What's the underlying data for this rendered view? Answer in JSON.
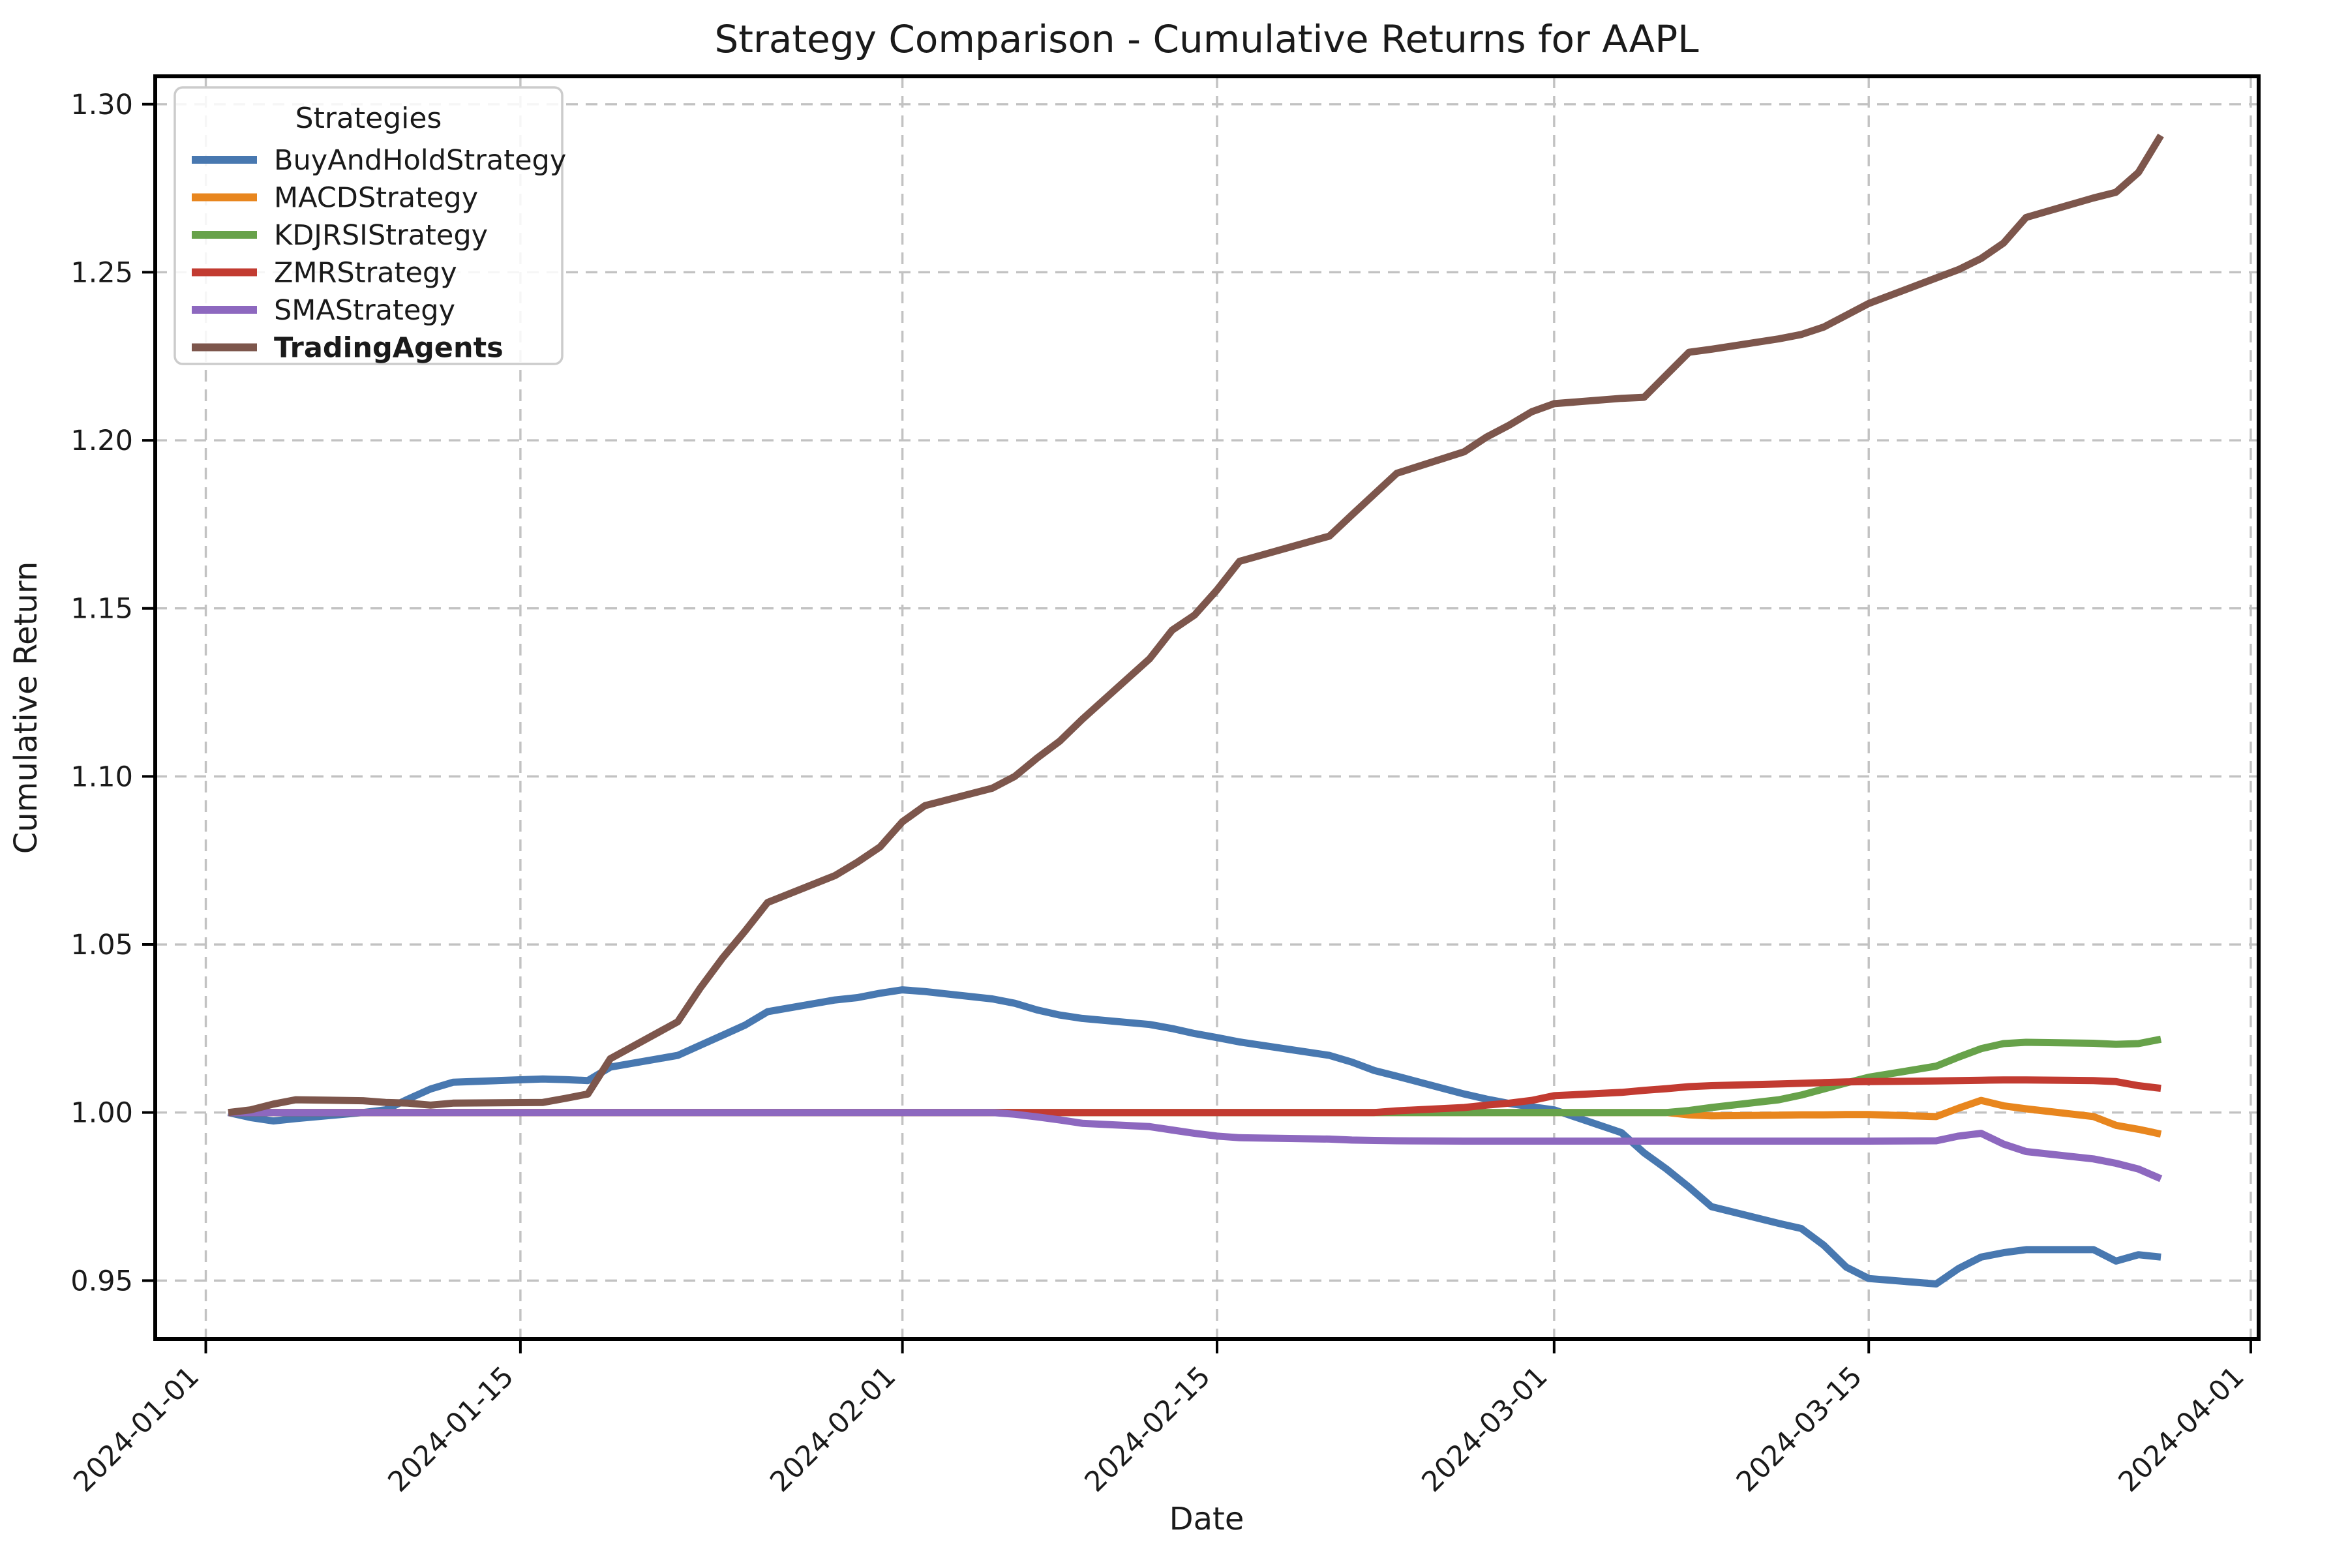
{
  "chart_data": {
    "type": "line",
    "title": "Strategy Comparison - Cumulative Returns for AAPL",
    "xlabel": "Date",
    "ylabel": "Cumulative Return",
    "legend_title": "Strategies",
    "legend_position": "upper left",
    "grid": "dashed",
    "axes": {
      "xlim_days_from_2024_01_01": [
        -2.25,
        91.35
      ],
      "ylim": [
        0.9326,
        1.3083
      ],
      "x_ticks": [
        {
          "day": 0,
          "label": "2024-01-01"
        },
        {
          "day": 14,
          "label": "2024-01-15"
        },
        {
          "day": 31,
          "label": "2024-02-01"
        },
        {
          "day": 45,
          "label": "2024-02-15"
        },
        {
          "day": 60,
          "label": "2024-03-01"
        },
        {
          "day": 74,
          "label": "2024-03-15"
        },
        {
          "day": 91,
          "label": "2024-04-01"
        }
      ],
      "y_ticks": [
        {
          "value": 0.95,
          "label": "0.95"
        },
        {
          "value": 1.0,
          "label": "1.00"
        },
        {
          "value": 1.05,
          "label": "1.05"
        },
        {
          "value": 1.1,
          "label": "1.10"
        },
        {
          "value": 1.15,
          "label": "1.15"
        },
        {
          "value": 1.2,
          "label": "1.20"
        },
        {
          "value": 1.25,
          "label": "1.25"
        },
        {
          "value": 1.3,
          "label": "1.30"
        }
      ]
    },
    "x_dates": [
      "2024-01-02",
      "2024-01-03",
      "2024-01-04",
      "2024-01-05",
      "2024-01-08",
      "2024-01-09",
      "2024-01-10",
      "2024-01-11",
      "2024-01-12",
      "2024-01-16",
      "2024-01-17",
      "2024-01-18",
      "2024-01-19",
      "2024-01-22",
      "2024-01-23",
      "2024-01-24",
      "2024-01-25",
      "2024-01-26",
      "2024-01-29",
      "2024-01-30",
      "2024-01-31",
      "2024-02-01",
      "2024-02-02",
      "2024-02-05",
      "2024-02-06",
      "2024-02-07",
      "2024-02-08",
      "2024-02-09",
      "2024-02-12",
      "2024-02-13",
      "2024-02-14",
      "2024-02-15",
      "2024-02-16",
      "2024-02-20",
      "2024-02-21",
      "2024-02-22",
      "2024-02-23",
      "2024-02-26",
      "2024-02-27",
      "2024-02-28",
      "2024-02-29",
      "2024-03-01",
      "2024-03-04",
      "2024-03-05",
      "2024-03-06",
      "2024-03-07",
      "2024-03-08",
      "2024-03-11",
      "2024-03-12",
      "2024-03-13",
      "2024-03-14",
      "2024-03-15",
      "2024-03-18",
      "2024-03-19",
      "2024-03-20",
      "2024-03-21",
      "2024-03-22",
      "2024-03-25",
      "2024-03-26",
      "2024-03-27",
      "2024-03-28"
    ],
    "x_days": [
      1,
      2,
      3,
      4,
      7,
      8,
      9,
      10,
      11,
      15,
      16,
      17,
      18,
      21,
      22,
      23,
      24,
      25,
      28,
      29,
      30,
      31,
      32,
      35,
      36,
      37,
      38,
      39,
      42,
      43,
      44,
      45,
      46,
      50,
      51,
      52,
      53,
      56,
      57,
      58,
      59,
      60,
      63,
      64,
      65,
      66,
      67,
      70,
      71,
      72,
      73,
      74,
      77,
      78,
      79,
      80,
      81,
      84,
      85,
      86,
      87
    ],
    "series": [
      {
        "name": "BuyAndHoldStrategy",
        "color": "#4878b0",
        "bold": false,
        "values": [
          1.0,
          0.9985,
          0.9975,
          0.9982,
          1.0,
          1.0008,
          1.004,
          1.007,
          1.009,
          1.01,
          1.0098,
          1.0095,
          1.0135,
          1.017,
          1.02,
          1.023,
          1.026,
          1.03,
          1.0335,
          1.0342,
          1.0355,
          1.0365,
          1.036,
          1.0338,
          1.0325,
          1.0305,
          1.029,
          1.028,
          1.0262,
          1.025,
          1.0235,
          1.0223,
          1.021,
          1.017,
          1.015,
          1.0125,
          1.0108,
          1.0055,
          1.004,
          1.0027,
          1.0017,
          1.0008,
          0.994,
          0.988,
          0.9832,
          0.9778,
          0.972,
          0.967,
          0.9655,
          0.9605,
          0.954,
          0.9506,
          0.949,
          0.9536,
          0.957,
          0.9583,
          0.9592,
          0.9592,
          0.9558,
          0.9577,
          0.957
        ]
      },
      {
        "name": "MACDStrategy",
        "color": "#e8861e",
        "bold": false,
        "values": [
          1.0,
          1.0,
          1.0,
          1.0,
          1.0,
          1.0,
          1.0,
          1.0,
          1.0,
          1.0,
          1.0,
          1.0,
          1.0,
          1.0,
          1.0,
          1.0,
          1.0,
          1.0,
          1.0,
          1.0,
          1.0,
          1.0,
          1.0,
          1.0,
          1.0,
          1.0,
          1.0,
          1.0,
          1.0,
          1.0,
          1.0,
          1.0,
          1.0,
          1.0,
          1.0,
          1.0,
          1.0,
          1.0,
          1.0,
          1.0,
          1.0,
          1.0,
          1.0,
          1.0,
          1.0,
          0.9993,
          0.999,
          0.9992,
          0.9993,
          0.9993,
          0.9994,
          0.9994,
          0.9988,
          1.0013,
          1.0036,
          1.002,
          1.0011,
          0.9988,
          0.9962,
          0.995,
          0.9936
        ]
      },
      {
        "name": "KDJRSIStrategy",
        "color": "#67a24a",
        "bold": false,
        "values": [
          1.0,
          1.0,
          1.0,
          1.0,
          1.0,
          1.0,
          1.0,
          1.0,
          1.0,
          1.0,
          1.0,
          1.0,
          1.0,
          1.0,
          1.0,
          1.0,
          1.0,
          1.0,
          1.0,
          1.0,
          1.0,
          1.0,
          1.0,
          1.0,
          1.0,
          1.0,
          1.0,
          1.0,
          1.0,
          1.0,
          1.0,
          1.0,
          1.0,
          1.0,
          1.0,
          1.0,
          1.0,
          1.0,
          1.0,
          1.0,
          1.0,
          1.0,
          1.0,
          1.0,
          1.0,
          1.0006,
          1.0015,
          1.0038,
          1.0052,
          1.007,
          1.0088,
          1.0105,
          1.0138,
          1.0165,
          1.019,
          1.0205,
          1.0209,
          1.0206,
          1.0203,
          1.0205,
          1.0218
        ]
      },
      {
        "name": "ZMRStrategy",
        "color": "#c23b31",
        "bold": false,
        "values": [
          1.0,
          1.0,
          1.0,
          1.0,
          1.0,
          1.0,
          1.0,
          1.0,
          1.0,
          1.0,
          1.0,
          1.0,
          1.0,
          1.0,
          1.0,
          1.0,
          1.0,
          1.0,
          1.0,
          1.0,
          1.0,
          1.0,
          1.0,
          1.0,
          1.0,
          1.0,
          1.0,
          1.0,
          1.0,
          1.0,
          1.0,
          1.0,
          1.0,
          1.0,
          1.0,
          1.0,
          1.0005,
          1.0015,
          1.0022,
          1.0028,
          1.0036,
          1.005,
          1.006,
          1.0066,
          1.0071,
          1.0077,
          1.008,
          1.0085,
          1.0087,
          1.0089,
          1.0091,
          1.0092,
          1.0094,
          1.0095,
          1.0096,
          1.0097,
          1.0097,
          1.0095,
          1.0092,
          1.008,
          1.0072
        ]
      },
      {
        "name": "SMAStrategy",
        "color": "#8d68bf",
        "bold": false,
        "values": [
          1.0,
          1.0,
          1.0,
          1.0,
          1.0,
          1.0,
          1.0,
          1.0,
          1.0,
          1.0,
          1.0,
          1.0,
          1.0,
          1.0,
          1.0,
          1.0,
          1.0,
          1.0,
          1.0,
          1.0,
          1.0,
          1.0,
          1.0,
          1.0,
          0.9995,
          0.9987,
          0.9978,
          0.9968,
          0.9958,
          0.9948,
          0.9938,
          0.993,
          0.9925,
          0.9921,
          0.9918,
          0.9917,
          0.9916,
          0.9915,
          0.9915,
          0.9915,
          0.9915,
          0.9915,
          0.9915,
          0.9915,
          0.9915,
          0.9915,
          0.9915,
          0.9915,
          0.9915,
          0.9915,
          0.9915,
          0.9915,
          0.9916,
          0.993,
          0.9938,
          0.9906,
          0.9884,
          0.9862,
          0.9849,
          0.9832,
          0.9803
        ]
      },
      {
        "name": "TradingAgents",
        "color": "#7d564c",
        "bold": true,
        "values": [
          1.0,
          1.0008,
          1.0025,
          1.0038,
          1.0035,
          1.003,
          1.0028,
          1.0022,
          1.0028,
          1.003,
          1.0042,
          1.0055,
          1.016,
          1.027,
          1.037,
          1.046,
          1.054,
          1.0625,
          1.0705,
          1.0745,
          1.079,
          1.0865,
          1.0913,
          1.0965,
          1.1,
          1.1055,
          1.1105,
          1.117,
          1.135,
          1.1435,
          1.148,
          1.1555,
          1.164,
          1.1715,
          1.1778,
          1.184,
          1.1902,
          1.1966,
          1.201,
          1.2045,
          1.2085,
          1.2109,
          1.2125,
          1.2128,
          1.2195,
          1.2262,
          1.2271,
          1.2302,
          1.2315,
          1.2337,
          1.2372,
          1.2407,
          1.2483,
          1.2508,
          1.2541,
          1.2587,
          1.2663,
          1.2721,
          1.2738,
          1.2797,
          1.2907
        ]
      }
    ]
  }
}
